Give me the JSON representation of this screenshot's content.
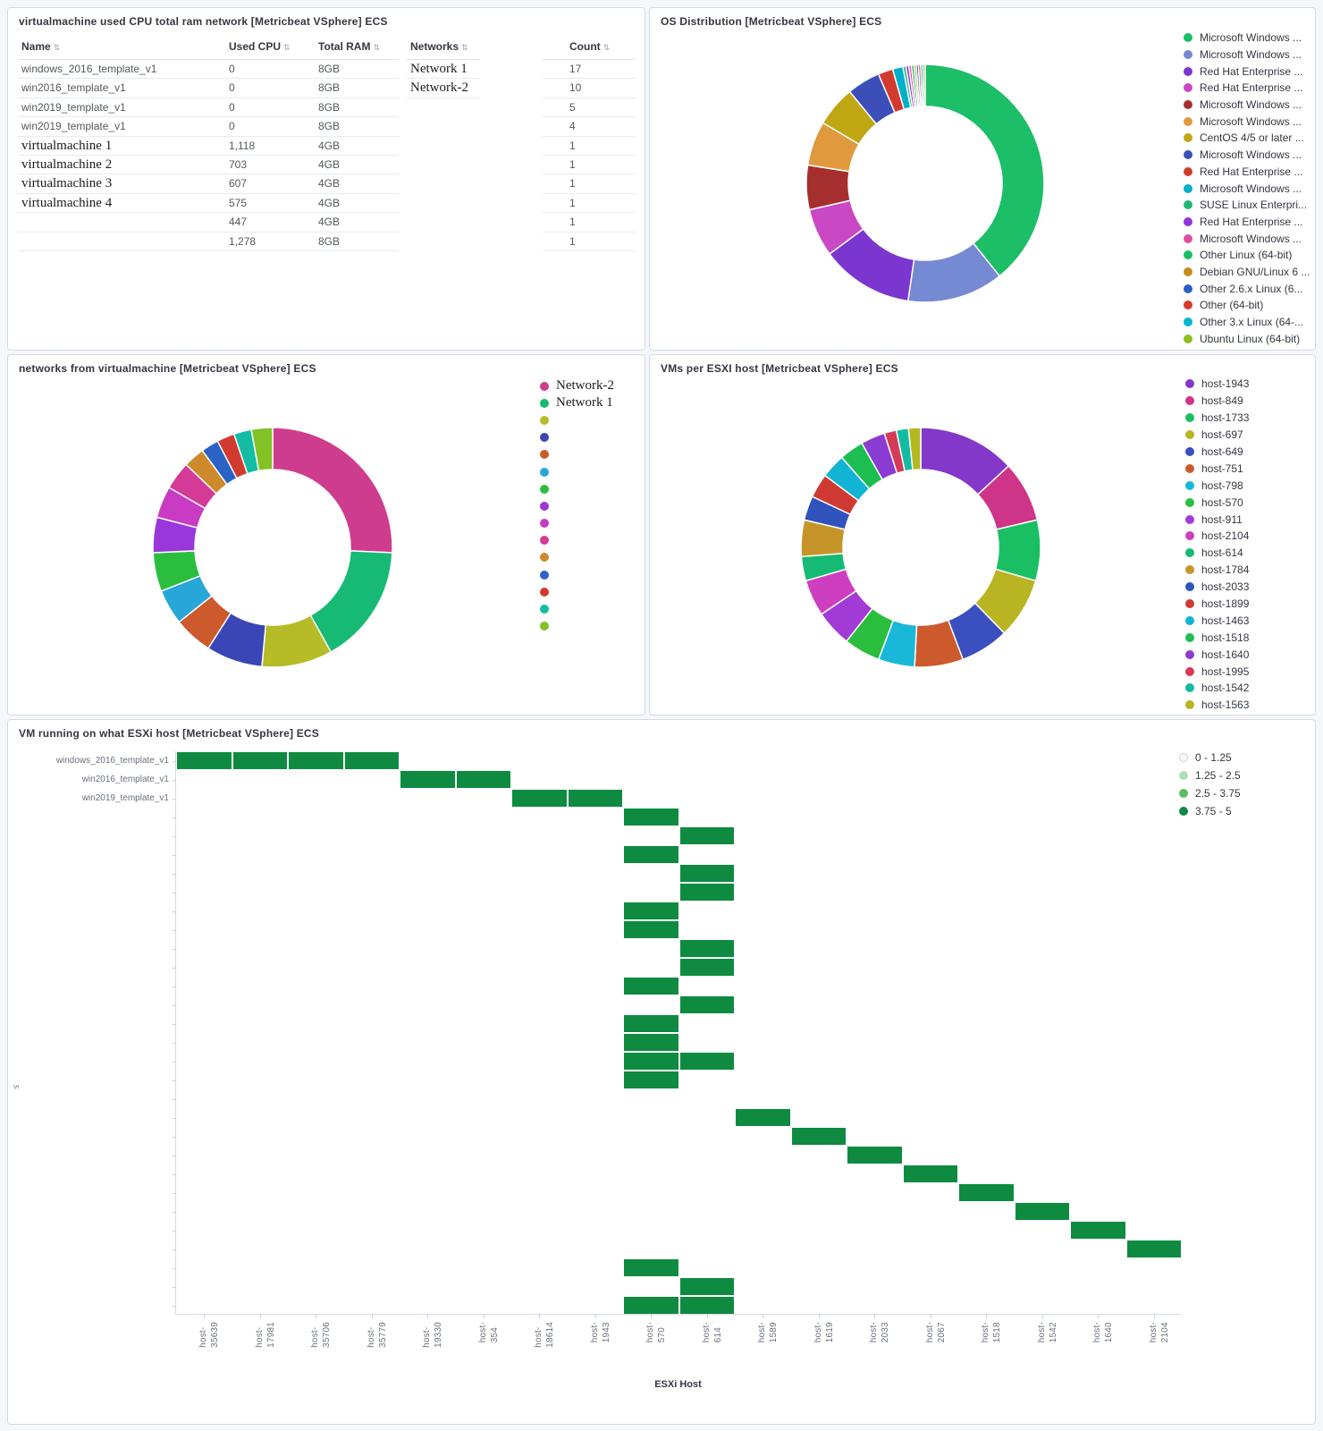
{
  "chart_data": [
    {
      "type": "table",
      "title": "virtualmachine used CPU total ram network [Metricbeat VSphere] ECS",
      "columns": [
        "Name",
        "Used CPU",
        "Total RAM"
      ],
      "network_column": "Networks",
      "count_column": "Count",
      "rows": [
        {
          "name": "windows_2016_template_v1",
          "cpu": "0",
          "ram": "8GB",
          "serif": false
        },
        {
          "name": "win2016_template_v1",
          "cpu": "0",
          "ram": "8GB",
          "serif": false
        },
        {
          "name": "win2019_template_v1",
          "cpu": "0",
          "ram": "8GB",
          "serif": false
        },
        {
          "name": "win2019_template_v1",
          "cpu": "0",
          "ram": "8GB",
          "serif": false
        },
        {
          "name": "virtualmachine 1",
          "cpu": "1,118",
          "ram": "4GB",
          "serif": true
        },
        {
          "name": "virtualmachine 2",
          "cpu": "703",
          "ram": "4GB",
          "serif": true
        },
        {
          "name": "virtualmachine 3",
          "cpu": "607",
          "ram": "4GB",
          "serif": true
        },
        {
          "name": "virtualmachine 4",
          "cpu": "575",
          "ram": "4GB",
          "serif": true
        },
        {
          "name": "",
          "cpu": "447",
          "ram": "4GB",
          "serif": false
        },
        {
          "name": "",
          "cpu": "1,278",
          "ram": "8GB",
          "serif": false
        }
      ],
      "networks": [
        "Network 1",
        "Network-2"
      ],
      "counts": [
        "17",
        "10",
        "5",
        "4",
        "1",
        "1",
        "1",
        "1",
        "1",
        "1"
      ]
    },
    {
      "type": "pie",
      "donut": true,
      "title": "OS Distribution [Metricbeat VSphere] ECS",
      "legend_position": "right",
      "labels": [
        "Microsoft Windows ...",
        "Microsoft Windows ...",
        "Red Hat Enterprise ...",
        "Red Hat Enterprise ...",
        "Microsoft Windows ...",
        "Microsoft Windows ...",
        "CentOS 4/5 or later ...",
        "Microsoft Windows ...",
        "Red Hat Enterprise ...",
        "Microsoft Windows ...",
        "SUSE Linux Enterpri...",
        "Red Hat Enterprise ...",
        "Microsoft Windows ...",
        "Other Linux (64-bit)",
        "Debian GNU/Linux 6 ...",
        "Other 2.6.x Linux (6...",
        "Other (64-bit)",
        "Other 3.x Linux (64-...",
        "Ubuntu Linux (64-bit)"
      ],
      "values": [
        39,
        13,
        12.5,
        6.5,
        6,
        6,
        5.5,
        4.5,
        2,
        1.4,
        0.4,
        0.4,
        0.35,
        0.35,
        0.3,
        0.3,
        0.3,
        0.3,
        0.3
      ],
      "colors": [
        "#1CBE68",
        "#7689D3",
        "#7A36CE",
        "#CB48C4",
        "#A52F2F",
        "#E0993C",
        "#BFA713",
        "#3C4EB8",
        "#D23A2E",
        "#00AFC8",
        "#1FBA71",
        "#9136D9",
        "#DD4F9E",
        "#17C162",
        "#C68C20",
        "#2B5FC4",
        "#D63A2A",
        "#00B7D1",
        "#8AC221"
      ]
    },
    {
      "type": "pie",
      "donut": true,
      "title": "networks from virtualmachine [Metricbeat VSphere] ECS",
      "legend_position": "right",
      "labels": [
        "Network-2",
        "Network 1",
        "",
        "",
        "",
        "",
        "",
        "",
        "",
        "",
        "",
        "",
        "",
        "",
        ""
      ],
      "values": [
        27,
        17,
        10,
        8,
        5.5,
        5,
        5.5,
        5,
        4.5,
        4,
        3,
        2.5,
        2.5,
        2.5,
        3
      ],
      "colors": [
        "#CE3C8E",
        "#17BA74",
        "#B5BC26",
        "#3A46B5",
        "#CC5A2D",
        "#27A6D8",
        "#2BBE3E",
        "#9937DB",
        "#C93BC2",
        "#D53A96",
        "#CC8A2A",
        "#2B62C6",
        "#D23A30",
        "#14BCA4",
        "#82C226"
      ]
    },
    {
      "type": "pie",
      "donut": true,
      "title": "VMs per ESXI host [Metricbeat VSphere] ECS",
      "legend_position": "right",
      "labels": [
        "host-1943",
        "host-849",
        "host-1733",
        "host-697",
        "host-649",
        "host-751",
        "host-798",
        "host-570",
        "host-911",
        "host-2104",
        "host-614",
        "host-1784",
        "host-2033",
        "host-1899",
        "host-1463",
        "host-1518",
        "host-1640",
        "host-1995",
        "host-1542",
        "host-1563"
      ],
      "values": [
        8,
        5,
        5,
        5,
        4,
        4,
        3,
        3,
        3,
        3,
        2,
        3,
        2,
        2,
        2,
        2,
        2,
        1,
        1,
        1
      ],
      "colors": [
        "#8338C9",
        "#CE3488",
        "#1ABF63",
        "#B9B421",
        "#3A4FC0",
        "#CC5A2D",
        "#19B8D8",
        "#2BBE3E",
        "#A23BD6",
        "#CE3FC0",
        "#17BA74",
        "#C6952A",
        "#2F52BD",
        "#CE3A31",
        "#12B4D4",
        "#1DBE51",
        "#8A3BD2",
        "#D53A56",
        "#12BCA2",
        "#B5B81E"
      ]
    },
    {
      "type": "heatmap",
      "title": "VM running on what ESXi host [Metricbeat VSphere] ECS",
      "xlabel": "ESXi Host",
      "ylabel": "≤",
      "x": [
        "host-35639",
        "host-17981",
        "host-35706",
        "host-35779",
        "host-19330",
        "host-354",
        "host-18614",
        "host-1943",
        "host-570",
        "host-614",
        "host-1589",
        "host-1619",
        "host-2033",
        "host-2067",
        "host-1518",
        "host-1542",
        "host-1640",
        "host-2104"
      ],
      "y_labels": [
        "windows_2016_template_v1",
        "win2016_template_v1",
        "win2019_template_v1"
      ],
      "n_rows": 30,
      "value_range": [
        0,
        5
      ],
      "cell_value_bucket": "3.75 - 5",
      "cell_color": "#0E8B41",
      "legend": [
        {
          "label": "0 - 1.25",
          "color": "#F7FCF7"
        },
        {
          "label": "1.25 - 2.5",
          "color": "#AEDFB1"
        },
        {
          "label": "2.5 - 3.75",
          "color": "#5ABE61"
        },
        {
          "label": "3.75 - 5",
          "color": "#0E8B41"
        }
      ],
      "cells": [
        {
          "r": 0,
          "c": [
            0,
            1,
            2,
            3
          ]
        },
        {
          "r": 1,
          "c": [
            4,
            5
          ]
        },
        {
          "r": 2,
          "c": [
            6,
            7
          ]
        },
        {
          "r": 3,
          "c": [
            8
          ]
        },
        {
          "r": 4,
          "c": [
            9
          ]
        },
        {
          "r": 5,
          "c": [
            8
          ]
        },
        {
          "r": 6,
          "c": [
            9
          ]
        },
        {
          "r": 7,
          "c": [
            9
          ]
        },
        {
          "r": 8,
          "c": [
            8
          ]
        },
        {
          "r": 9,
          "c": [
            8
          ]
        },
        {
          "r": 10,
          "c": [
            9
          ]
        },
        {
          "r": 11,
          "c": [
            9
          ]
        },
        {
          "r": 12,
          "c": [
            8
          ]
        },
        {
          "r": 13,
          "c": [
            9
          ]
        },
        {
          "r": 14,
          "c": [
            8
          ]
        },
        {
          "r": 15,
          "c": [
            8
          ]
        },
        {
          "r": 16,
          "c": [
            8,
            9
          ]
        },
        {
          "r": 17,
          "c": [
            8
          ]
        },
        {
          "r": 19,
          "c": [
            10
          ]
        },
        {
          "r": 20,
          "c": [
            11
          ]
        },
        {
          "r": 21,
          "c": [
            12
          ]
        },
        {
          "r": 22,
          "c": [
            13
          ]
        },
        {
          "r": 23,
          "c": [
            14
          ]
        },
        {
          "r": 24,
          "c": [
            15
          ]
        },
        {
          "r": 25,
          "c": [
            16
          ]
        },
        {
          "r": 26,
          "c": [
            17
          ]
        },
        {
          "r": 27,
          "c": [
            8
          ]
        },
        {
          "r": 28,
          "c": [
            9
          ]
        },
        {
          "r": 29,
          "c": [
            8,
            9
          ]
        }
      ]
    }
  ]
}
